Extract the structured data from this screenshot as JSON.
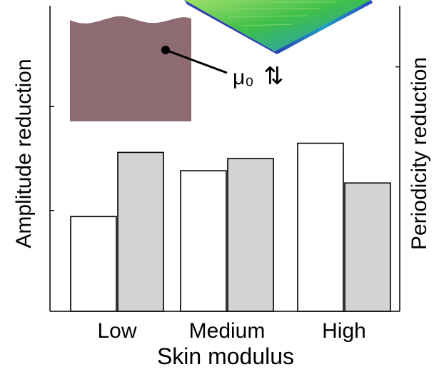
{
  "chart_data": {
    "type": "bar",
    "categories": [
      "Low",
      "Medium",
      "High"
    ],
    "series": [
      {
        "values": [
          0.31,
          0.46,
          0.55
        ],
        "color": "#ffffff"
      },
      {
        "values": [
          0.52,
          0.5,
          0.42
        ],
        "color": "#d3d3d3"
      }
    ],
    "ylim": [
      0,
      1
    ],
    "xlabel": "Skin modulus",
    "ylabel_left": "Amplitude reduction",
    "ylabel_right": "Periodicity reduction",
    "grid": false
  },
  "inset": {
    "block_color": "#8e6a72",
    "label": "μ₀",
    "arrows": "⇅"
  },
  "colors": {
    "bar_outline": "#000000",
    "axis": "#000000"
  }
}
